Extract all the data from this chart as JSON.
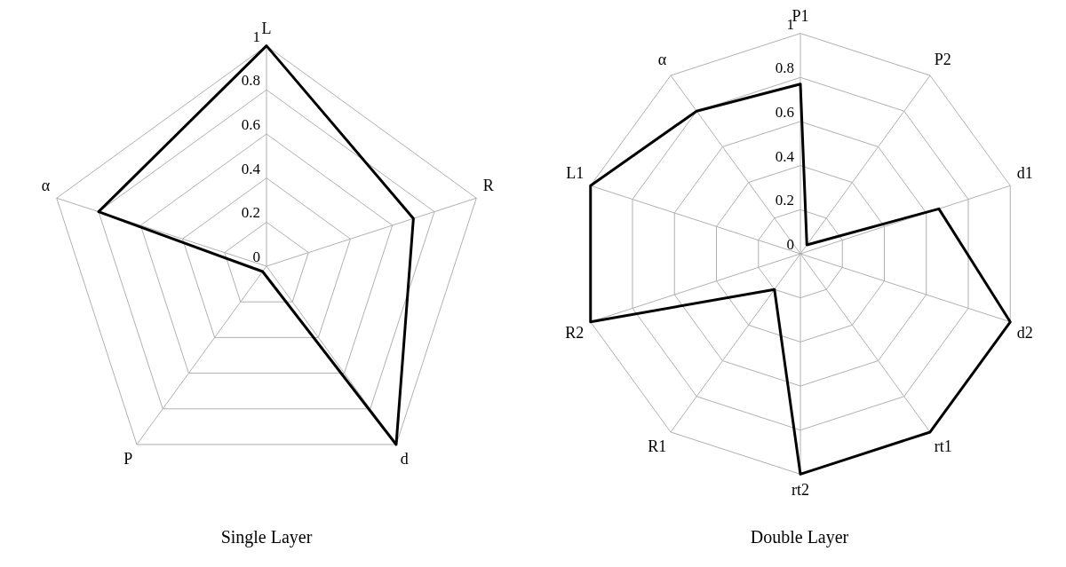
{
  "chart_data": [
    {
      "type": "radar",
      "title": "Single Layer",
      "categories": [
        "L",
        "R",
        "d",
        "P",
        "α"
      ],
      "series": [
        {
          "color": "#000000",
          "values": [
            1,
            0.7,
            1,
            0.03,
            0.8
          ]
        }
      ],
      "ylim": [
        0,
        1
      ],
      "yticks": [
        0,
        0.2,
        0.4,
        0.6,
        0.8,
        1
      ],
      "grid": true,
      "marker": "none"
    },
    {
      "type": "radar",
      "title": "Double Layer",
      "categories": [
        "P1",
        "P2",
        "d1",
        "d2",
        "rt1",
        "rt2",
        "R1",
        "R2",
        "L1",
        "α"
      ],
      "series": [
        {
          "color": "#000000",
          "values": [
            0.77,
            0.05,
            0.66,
            1,
            1,
            1,
            0.2,
            1,
            1,
            0.8
          ]
        }
      ],
      "ylim": [
        0,
        1
      ],
      "yticks": [
        0,
        0.2,
        0.4,
        0.6,
        0.8,
        1
      ],
      "grid": true,
      "marker": "none"
    }
  ]
}
